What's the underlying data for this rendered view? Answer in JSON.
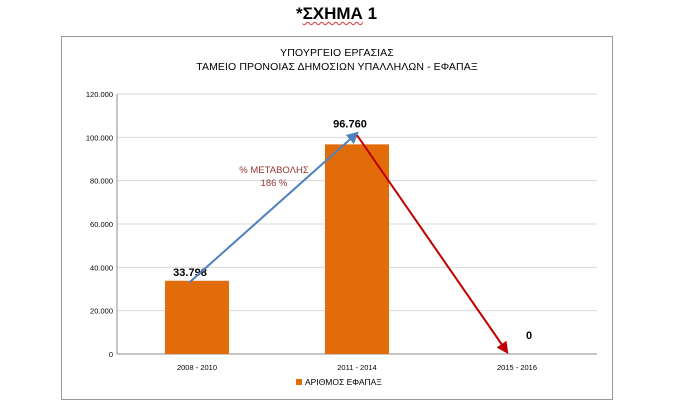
{
  "figure": {
    "label_prefix": "*",
    "label_word": "ΣΧΗΜΑ",
    "label_number": "1"
  },
  "colors": {
    "bar": "#E36C0A",
    "rise_arrow": "#4F81BD",
    "fall_arrow": "#C00000",
    "annotation": "#943634",
    "grid": "#D9D9D9"
  },
  "chart_data": {
    "type": "bar",
    "title_line1": "ΥΠΟΥΡΓΕΙΟ ΕΡΓΑΣΙΑΣ",
    "title_line2": "ΤΑΜΕΙΟ ΠΡΟΝΟΙΑΣ ΔΗΜΟΣΙΩΝ ΥΠΑΛΛΗΛΩΝ -   ΕΦΑΠΑΞ",
    "categories": [
      "2008 - 2010",
      "2011 - 2014",
      "2015 - 2016"
    ],
    "series": [
      {
        "name": "ΑΡΙΘΜΟΣ ΕΦΑΠΑΞ",
        "values": [
          33798,
          96760,
          0
        ]
      }
    ],
    "data_labels": [
      "33.798",
      "96.760",
      "0"
    ],
    "ylim": [
      0,
      120000
    ],
    "y_ticks": [
      0,
      20000,
      40000,
      60000,
      80000,
      100000,
      120000
    ],
    "y_tick_labels": [
      "0",
      "20.000",
      "40.000",
      "60.000",
      "80.000",
      "100.000",
      "120.000"
    ],
    "grid": true,
    "legend_position": "bottom",
    "annotation": {
      "line1": "%  ΜΕΤΑΒΟΛΗΣ",
      "line2": "186 %"
    },
    "arrows": [
      {
        "kind": "rise",
        "from_category": 0,
        "from_value": 33798,
        "to_category": 1,
        "to_value": 101000
      },
      {
        "kind": "fall",
        "from_category": 1,
        "from_value": 101000,
        "to_category": 2,
        "to_value": 0
      }
    ]
  }
}
